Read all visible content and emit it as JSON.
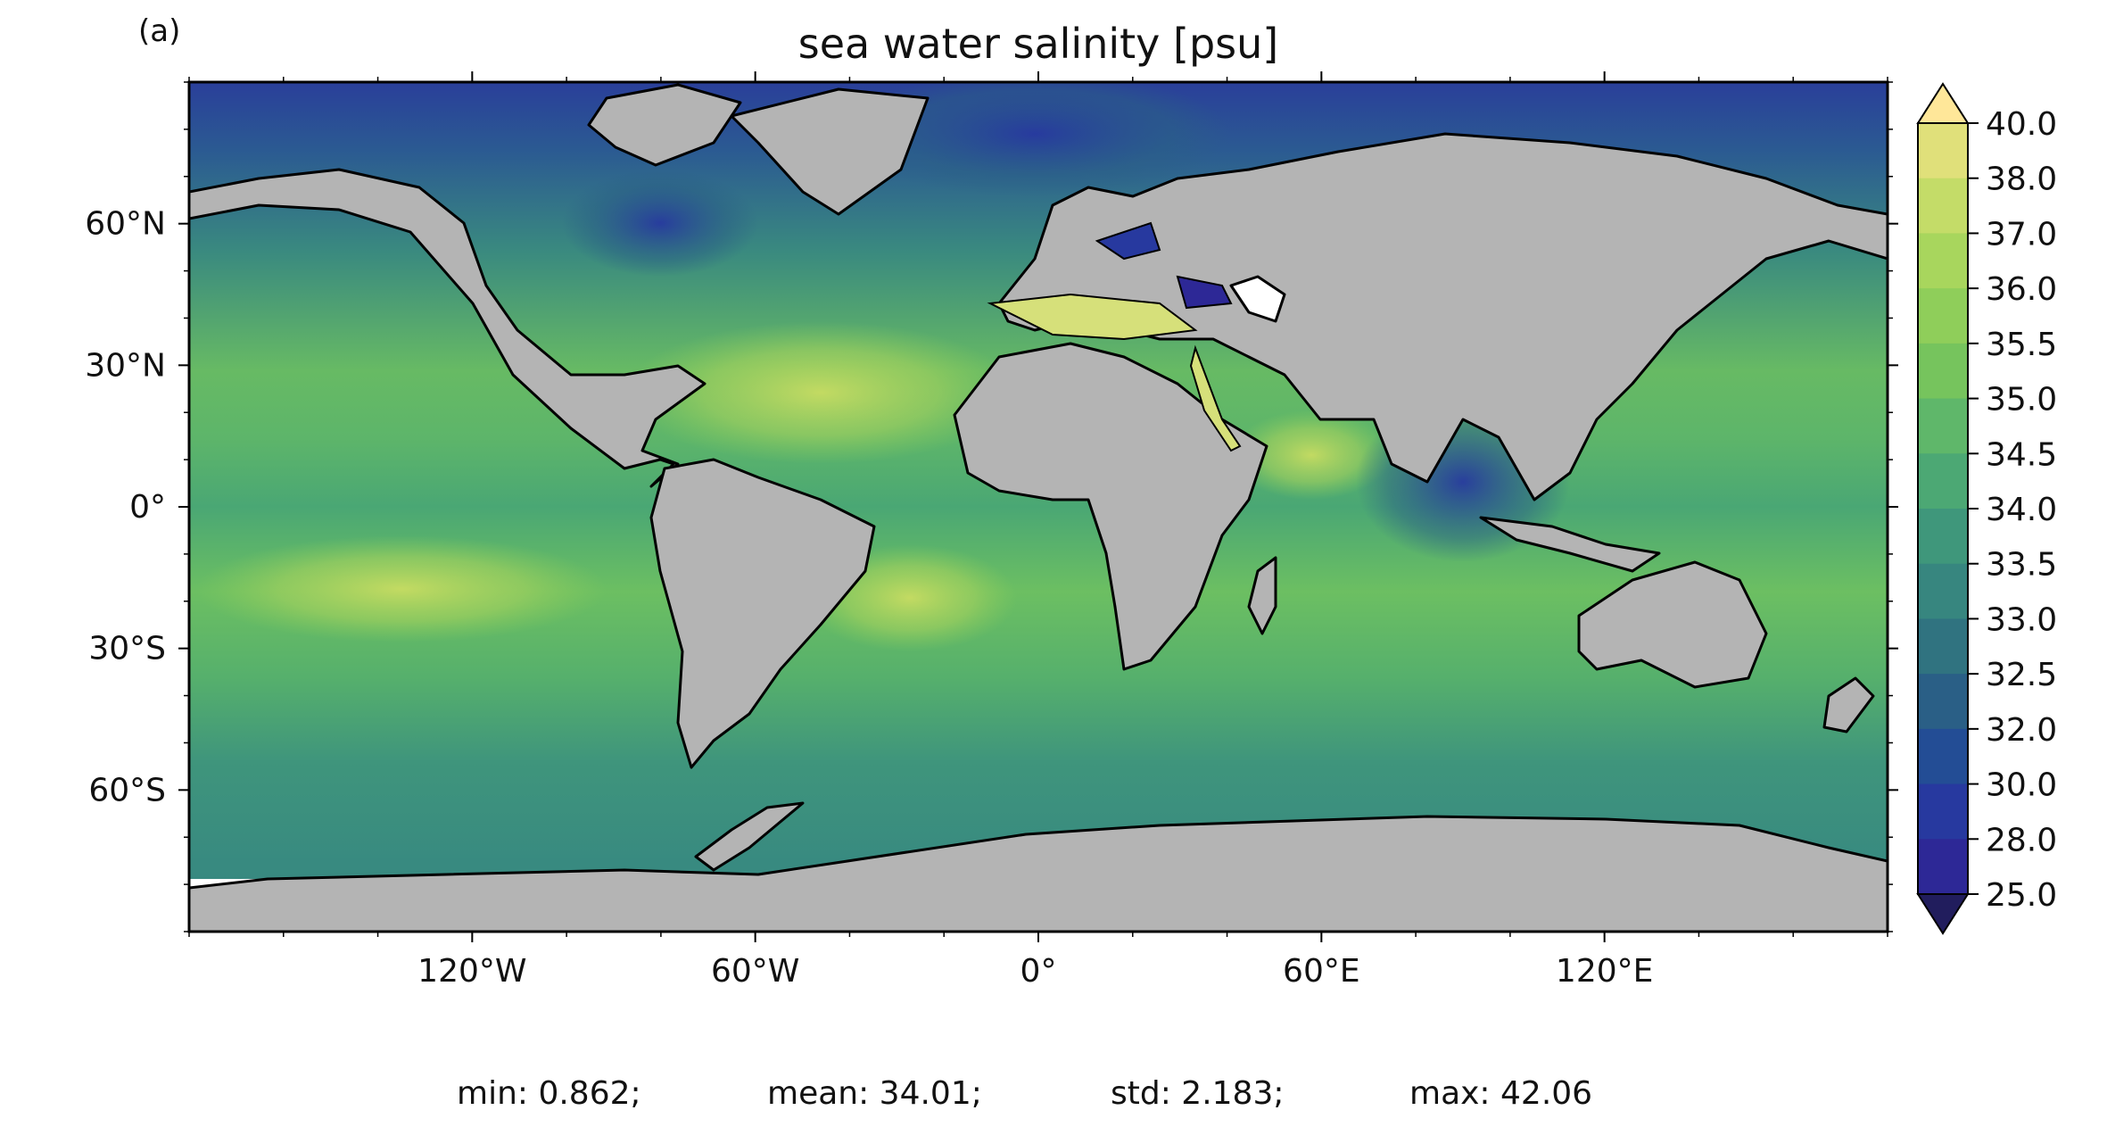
{
  "panel_label": "(a)",
  "title": "sea water salinity [psu]",
  "lon_ticks": [
    "120°W",
    "60°W",
    "0°",
    "60°E",
    "120°E"
  ],
  "lat_ticks": [
    "60°N",
    "30°N",
    "0°",
    "30°S",
    "60°S"
  ],
  "colorbar": {
    "labels": [
      "40.0",
      "38.0",
      "37.0",
      "36.0",
      "35.5",
      "35.0",
      "34.5",
      "34.0",
      "33.5",
      "33.0",
      "32.5",
      "32.0",
      "30.0",
      "28.0",
      "25.0"
    ],
    "colors": [
      "#ffe799",
      "#e0e07a",
      "#c4dc68",
      "#a8d65d",
      "#8fce5a",
      "#76c45d",
      "#5fb76a",
      "#4ca874",
      "#3f977b",
      "#37867f",
      "#307380",
      "#2a5f86",
      "#234d95",
      "#27399f",
      "#2d2896"
    ],
    "extend": "both",
    "over_color": "#ffe799",
    "under_color": "#211d5d"
  },
  "map_colors": {
    "land": "#b4b4b4",
    "coast": "#000000",
    "ice_gap": "#ffffff"
  },
  "stats": {
    "min": "min: 0.862;",
    "mean": "mean: 34.01;",
    "std": "std: 2.183;",
    "max": "max: 42.06"
  }
}
